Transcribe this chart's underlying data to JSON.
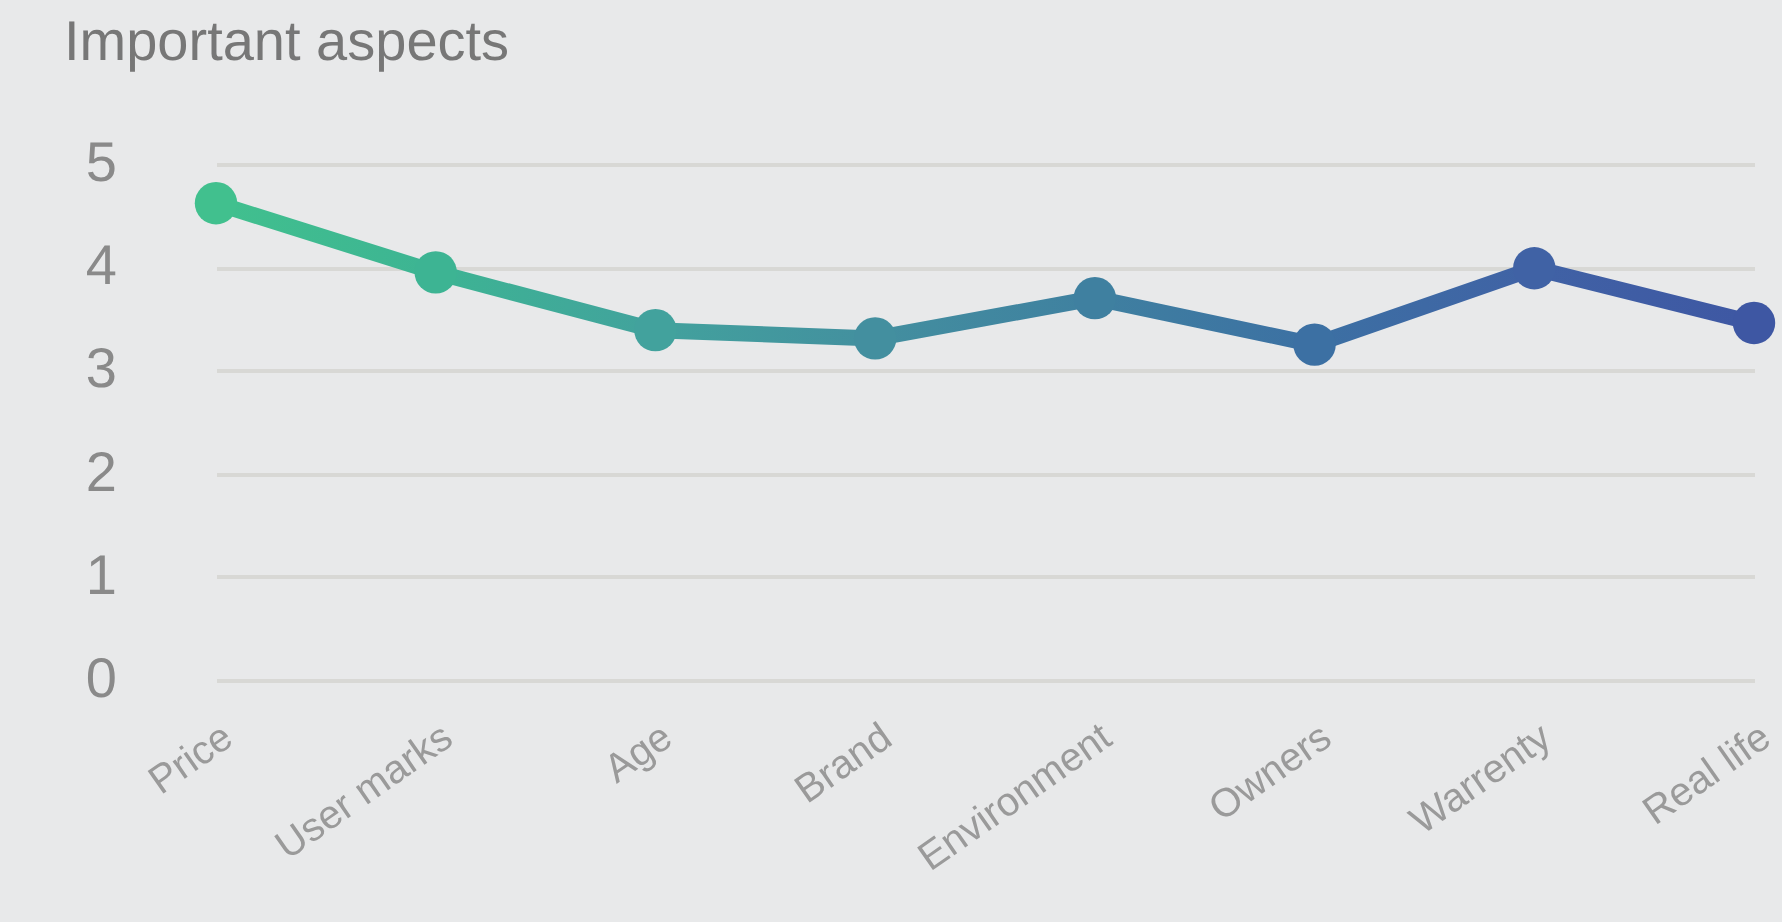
{
  "chart_data": {
    "type": "line",
    "title": "Important aspects",
    "categories": [
      "Price",
      "User marks",
      "Age",
      "Brand",
      "Environment",
      "Owners",
      "Warrenty",
      "Real life"
    ],
    "series": [
      {
        "colors": [
          "#41c08e",
          "#3db493",
          "#42a29d",
          "#438f9f",
          "#3f80a0",
          "#3c70a3",
          "#4062a5",
          "#3e57a3"
        ],
        "values": [
          4.62,
          3.95,
          3.39,
          3.31,
          3.7,
          3.25,
          3.99,
          3.46
        ]
      }
    ],
    "ylim": [
      0,
      5
    ],
    "yticks": [
      0,
      1,
      2,
      3,
      4,
      5
    ],
    "grid": "y",
    "marker": "circle",
    "line_style": "solid"
  }
}
